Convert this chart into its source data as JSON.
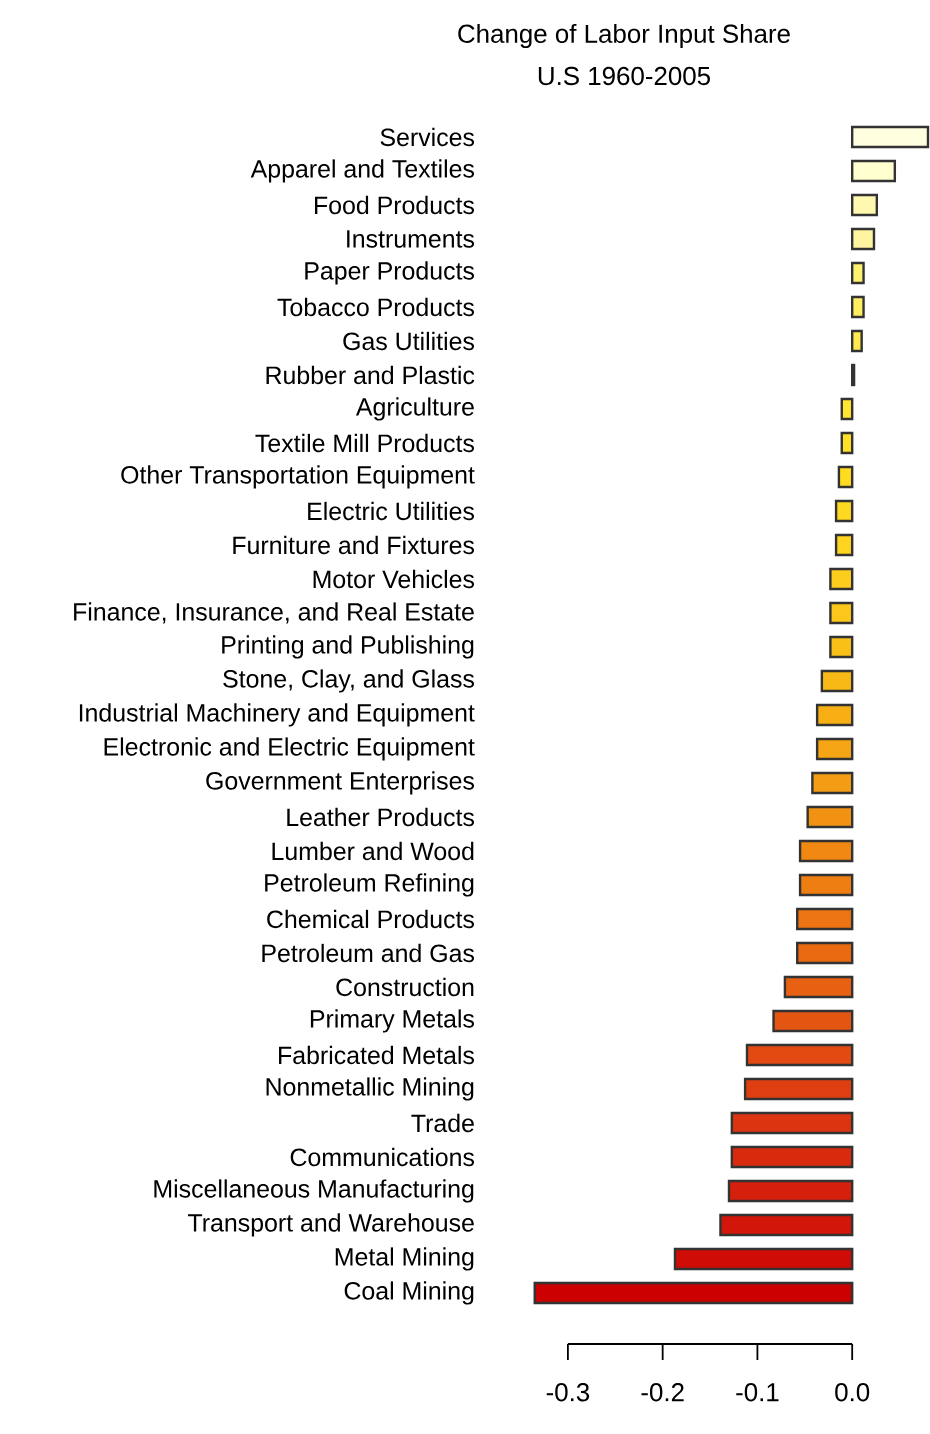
{
  "chart_data": {
    "type": "bar",
    "orientation": "horizontal",
    "title": "Change of Labor Input Share",
    "subtitle": "U.S 1960-2005",
    "categories": [
      "Services",
      "Apparel and Textiles",
      "Food Products",
      "Instruments",
      "Paper Products",
      "Tobacco Products",
      "Gas Utilities",
      "Rubber and Plastic",
      "Agriculture",
      "Textile Mill Products",
      "Other Transportation Equipment",
      "Electric Utilities",
      "Furniture and Fixtures",
      "Motor Vehicles",
      "Finance, Insurance, and Real Estate",
      "Printing and Publishing",
      "Stone, Clay, and Glass",
      "Industrial Machinery and Equipment",
      "Electronic and Electric Equipment",
      "Government Enterprises",
      "Leather Products",
      "Lumber and Wood",
      "Petroleum Refining",
      "Chemical Products",
      "Petroleum and Gas",
      "Construction",
      "Primary Metals",
      "Fabricated Metals",
      "Nonmetallic Mining",
      "Trade",
      "Communications",
      "Miscellaneous Manufacturing",
      "Transport and Warehouse",
      "Metal Mining",
      "Coal Mining"
    ],
    "values": [
      0.08,
      0.045,
      0.026,
      0.023,
      0.012,
      0.012,
      0.01,
      0.002,
      -0.011,
      -0.011,
      -0.014,
      -0.017,
      -0.017,
      -0.023,
      -0.023,
      -0.023,
      -0.032,
      -0.037,
      -0.037,
      -0.042,
      -0.047,
      -0.055,
      -0.055,
      -0.058,
      -0.058,
      -0.071,
      -0.083,
      -0.111,
      -0.113,
      -0.127,
      -0.127,
      -0.13,
      -0.139,
      -0.187,
      -0.335
    ],
    "colors": [
      "#FFFFE0",
      "#FFFFD0",
      "#FFF9B0",
      "#FFF5A0",
      "#FFF170",
      "#FFEE60",
      "#FFEA50",
      "#FFE640",
      "#FFE430",
      "#FFE028",
      "#FFDC20",
      "#FFD820",
      "#FFD420",
      "#FCCD1C",
      "#FAC71A",
      "#F9C018",
      "#F8B816",
      "#F7AF14",
      "#F6A614",
      "#F49C14",
      "#F29212",
      "#F08812",
      "#EE7E12",
      "#EC7412",
      "#EA6A12",
      "#E86012",
      "#E55512",
      "#E24A12",
      "#DF3F10",
      "#DC3410",
      "#D92A0E",
      "#D6200C",
      "#D3160A",
      "#D00C06",
      "#CC0000"
    ],
    "xlim": [
      -0.34,
      0.08
    ],
    "xticks": [
      -0.3,
      -0.2,
      -0.1,
      {
        "value": 0,
        "label": "0.0"
      }
    ],
    "grid": false
  }
}
